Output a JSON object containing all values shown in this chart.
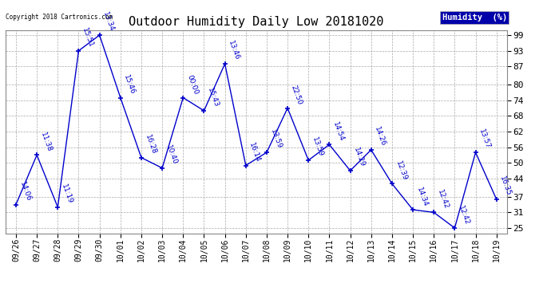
{
  "title": "Outdoor Humidity Daily Low 20181020",
  "legend_label": "Humidity  (%)",
  "copyright": "Copyright 2018 Cartronics.com",
  "dates": [
    "09/26",
    "09/27",
    "09/28",
    "09/29",
    "09/30",
    "10/01",
    "10/02",
    "10/03",
    "10/04",
    "10/05",
    "10/06",
    "10/07",
    "10/08",
    "10/09",
    "10/10",
    "10/11",
    "10/12",
    "10/13",
    "10/14",
    "10/15",
    "10/16",
    "10/17",
    "10/18",
    "10/19"
  ],
  "values": [
    34,
    53,
    33,
    93,
    99,
    75,
    52,
    48,
    75,
    70,
    88,
    49,
    54,
    71,
    51,
    57,
    47,
    55,
    42,
    32,
    31,
    25,
    54,
    36
  ],
  "annotations": [
    "14:06",
    "11:38",
    "11:19",
    "15:51",
    "13:34",
    "15:46",
    "16:28",
    "10:40",
    "00:00",
    "15:43",
    "13:46",
    "16:14",
    "13:59",
    "22:50",
    "13:59",
    "14:54",
    "14:29",
    "14:26",
    "12:39",
    "14:34",
    "12:42",
    "12:42",
    "13:57",
    "16:35"
  ],
  "line_color": "#0000cc",
  "marker_color": "#0000cc",
  "bg_color": "#ffffff",
  "plot_bg_color": "#ffffff",
  "grid_color": "#aaaaaa",
  "title_fontsize": 11,
  "tick_fontsize": 7,
  "annotation_fontsize": 6.5,
  "ylim_min": 23,
  "ylim_max": 101,
  "yticks": [
    25,
    31,
    37,
    44,
    50,
    56,
    62,
    68,
    74,
    80,
    87,
    93,
    99
  ],
  "legend_bg": "#0000aa",
  "legend_text_color": "#ffffff"
}
